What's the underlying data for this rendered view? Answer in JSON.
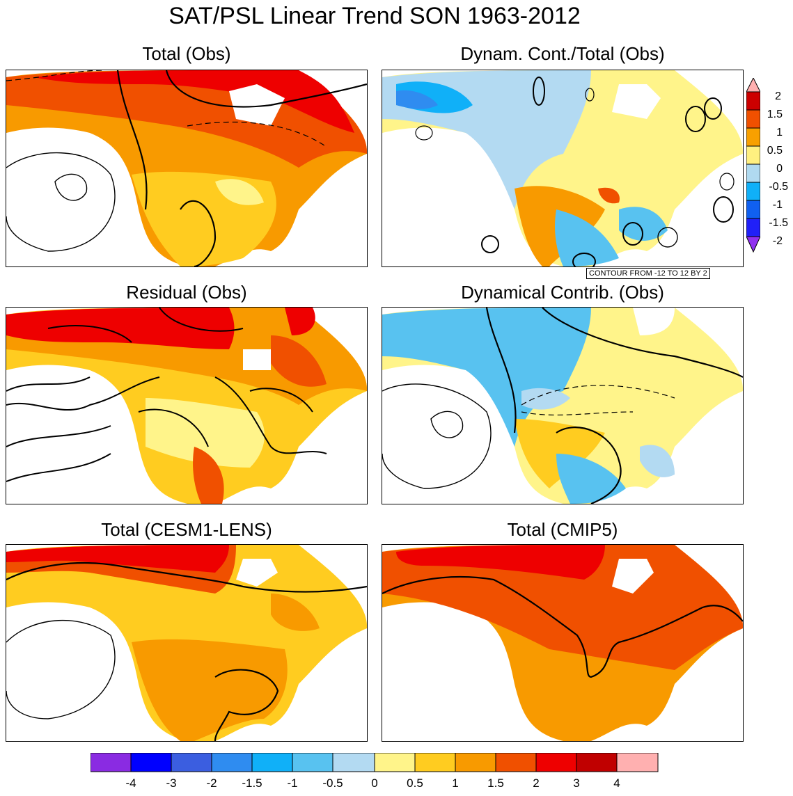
{
  "title": "SAT/PSL Linear Trend SON 1963-2012",
  "panels": [
    {
      "title": "Total (Obs)"
    },
    {
      "title": "Dynam. Cont./Total (Obs)"
    },
    {
      "title": "Residual (Obs)"
    },
    {
      "title": "Dynamical Contrib. (Obs)"
    },
    {
      "title": "Total (CESM1-LENS)"
    },
    {
      "title": "Total (CMIP5)"
    }
  ],
  "contour_note": "CONTOUR FROM -12 TO 12 BY 2",
  "ratio_colorbar": {
    "labels": [
      "2",
      "1.5",
      "1",
      "0.5",
      "0",
      "-0.5",
      "-1",
      "-1.5",
      "-2"
    ],
    "colors": [
      "#ffb0b0",
      "#cc0000",
      "#f05000",
      "#f8a000",
      "#fff080",
      "#b0daf0",
      "#10b0f8",
      "#1060f0",
      "#2020f8",
      "#9030f0"
    ]
  },
  "trend_colorbar": {
    "labels": [
      "-4",
      "-3",
      "-2",
      "-1.5",
      "-1",
      "-0.5",
      "0",
      "0.5",
      "1",
      "1.5",
      "2",
      "3",
      "4"
    ],
    "colors": [
      "#8a2be2",
      "#0000ff",
      "#3b5ee0",
      "#2f8cf0",
      "#10b0f8",
      "#58c2f0",
      "#b3daf2",
      "#fff48a",
      "#ffcc20",
      "#f89a00",
      "#f05000",
      "#ee0000",
      "#c00000",
      "#ffb0b0"
    ]
  }
}
